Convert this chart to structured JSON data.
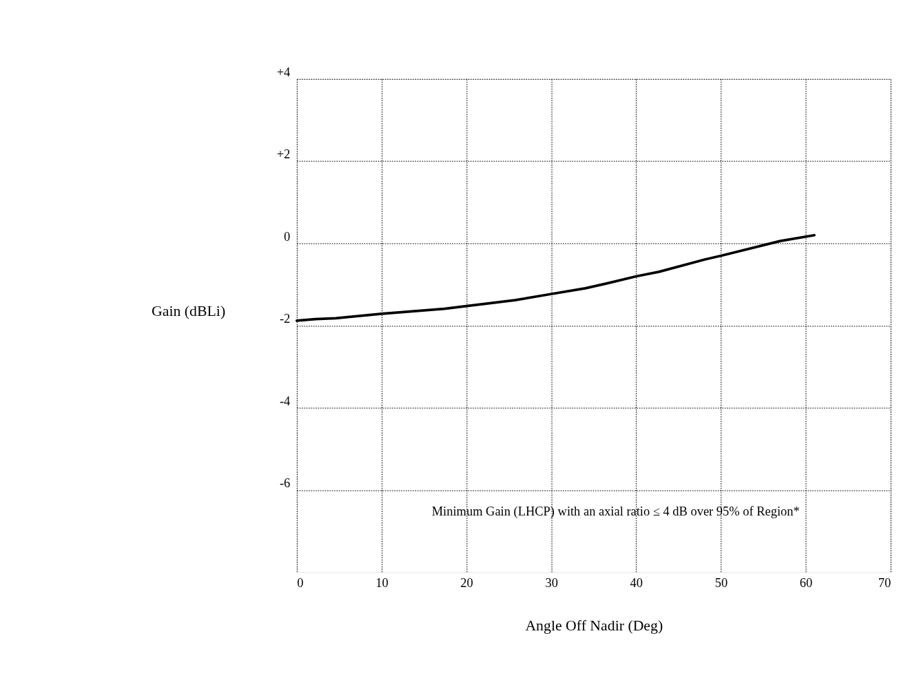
{
  "chart_data": {
    "type": "line",
    "xlabel": "Angle Off Nadir (Deg)",
    "ylabel": "Gain (dBLi)",
    "x": [
      0,
      2.2,
      4.6,
      10,
      17.4,
      20.2,
      25.7,
      29.7,
      34,
      36.6,
      40,
      42.7,
      48.1,
      50.2,
      57,
      61
    ],
    "series": [
      {
        "color": "#000000",
        "values": [
          -1.88,
          -1.84,
          -1.82,
          -1.71,
          -1.59,
          -1.52,
          -1.38,
          -1.24,
          -1.09,
          -0.97,
          -0.8,
          -0.69,
          -0.39,
          -0.29,
          0.06,
          0.2
        ]
      }
    ],
    "xlim": [
      0,
      70
    ],
    "xticks": [
      0,
      10,
      20,
      30,
      40,
      50,
      60,
      70
    ],
    "ylim": [
      -8,
      4
    ],
    "yticks": [
      {
        "value": 4,
        "label": "+4"
      },
      {
        "value": 2,
        "label": "+2"
      },
      0,
      -2,
      -4,
      -6
    ],
    "grid": true,
    "marker": "none",
    "line_style": "solid",
    "annotations": [
      "Minimum Gain (LHCP) with an axial ratio ≤ 4 dB over 95% of Region*"
    ]
  }
}
